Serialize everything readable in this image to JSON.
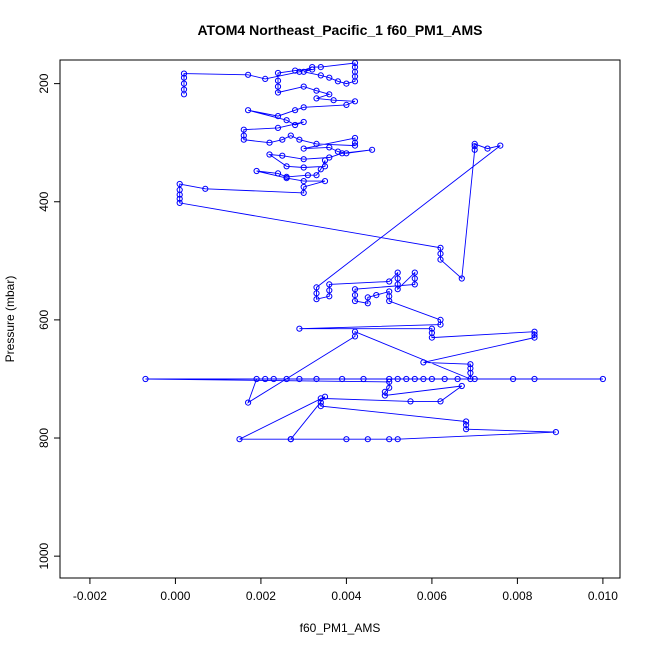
{
  "chart_data": {
    "type": "scatter",
    "title": "ATOM4 Northeast_Pacific_1 f60_PM1_AMS",
    "xlabel": "f60_PM1_AMS",
    "ylabel": "Pressure (mbar)",
    "xlim": [
      -0.0027,
      0.0104
    ],
    "ylim": [
      1037,
      160
    ],
    "y_inverted": true,
    "x_ticks": [
      -0.002,
      0.0,
      0.002,
      0.004,
      0.006,
      0.008,
      0.01
    ],
    "x_tick_labels": [
      "-0.002",
      "0.000",
      "0.002",
      "0.004",
      "0.006",
      "0.008",
      "0.010"
    ],
    "y_ticks": [
      200,
      400,
      600,
      800,
      1000
    ],
    "y_tick_labels": [
      "200",
      "400",
      "600",
      "800",
      "1000"
    ],
    "grid": false,
    "legend": "none",
    "series_color": "#0000ff",
    "marker": "open-circle",
    "connected": true,
    "series": [
      {
        "points": [
          [
            0.0002,
            218
          ],
          [
            0.0002,
            210
          ],
          [
            0.0002,
            200
          ],
          [
            0.0002,
            190
          ],
          [
            0.0002,
            183
          ],
          [
            0.0017,
            185
          ],
          [
            0.0021,
            192
          ],
          [
            0.0029,
            180
          ],
          [
            0.0032,
            172
          ],
          [
            0.0034,
            172
          ],
          [
            0.0042,
            165
          ],
          [
            0.0042,
            172
          ],
          [
            0.0042,
            180
          ],
          [
            0.0042,
            188
          ],
          [
            0.0042,
            196
          ],
          [
            0.004,
            200
          ],
          [
            0.0038,
            196
          ],
          [
            0.0036,
            190
          ],
          [
            0.0034,
            186
          ],
          [
            0.003,
            180
          ],
          [
            0.0032,
            176
          ],
          [
            0.0028,
            178
          ],
          [
            0.0024,
            182
          ],
          [
            0.0024,
            195
          ],
          [
            0.0024,
            205
          ],
          [
            0.0024,
            215
          ],
          [
            0.003,
            205
          ],
          [
            0.0033,
            212
          ],
          [
            0.0036,
            218
          ],
          [
            0.0033,
            225
          ],
          [
            0.0037,
            228
          ],
          [
            0.0042,
            230
          ],
          [
            0.004,
            236
          ],
          [
            0.003,
            240
          ],
          [
            0.0028,
            245
          ],
          [
            0.0024,
            255
          ],
          [
            0.0017,
            245
          ],
          [
            0.0026,
            262
          ],
          [
            0.0028,
            270
          ],
          [
            0.003,
            265
          ],
          [
            0.0024,
            275
          ],
          [
            0.0016,
            278
          ],
          [
            0.0016,
            288
          ],
          [
            0.0016,
            295
          ],
          [
            0.0022,
            300
          ],
          [
            0.0025,
            295
          ],
          [
            0.0027,
            288
          ],
          [
            0.0029,
            295
          ],
          [
            0.0033,
            302
          ],
          [
            0.0042,
            305
          ],
          [
            0.0042,
            300
          ],
          [
            0.0042,
            292
          ],
          [
            0.003,
            310
          ],
          [
            0.0036,
            308
          ],
          [
            0.0038,
            315
          ],
          [
            0.004,
            318
          ],
          [
            0.0046,
            312
          ],
          [
            0.0039,
            318
          ],
          [
            0.0036,
            325
          ],
          [
            0.003,
            328
          ],
          [
            0.0025,
            322
          ],
          [
            0.0022,
            320
          ],
          [
            0.0026,
            340
          ],
          [
            0.003,
            342
          ],
          [
            0.0035,
            340
          ],
          [
            0.0035,
            330
          ],
          [
            0.0034,
            345
          ],
          [
            0.0033,
            355
          ],
          [
            0.0031,
            355
          ],
          [
            0.0026,
            358
          ],
          [
            0.0024,
            352
          ],
          [
            0.0019,
            348
          ],
          [
            0.0026,
            360
          ],
          [
            0.003,
            365
          ],
          [
            0.0035,
            365
          ],
          [
            0.003,
            375
          ],
          [
            0.003,
            385
          ],
          [
            0.0007,
            378
          ],
          [
            0.0001,
            370
          ],
          [
            0.0001,
            380
          ],
          [
            0.0001,
            388
          ],
          [
            0.0001,
            395
          ],
          [
            0.0001,
            402
          ],
          [
            0.0062,
            478
          ],
          [
            0.0062,
            488
          ],
          [
            0.0062,
            498
          ],
          [
            0.0067,
            530
          ],
          [
            0.007,
            312
          ],
          [
            0.007,
            306
          ],
          [
            0.007,
            302
          ],
          [
            0.0073,
            310
          ],
          [
            0.0076,
            305
          ],
          [
            0.0033,
            545
          ],
          [
            0.0033,
            555
          ],
          [
            0.0033,
            565
          ],
          [
            0.0036,
            560
          ],
          [
            0.0036,
            550
          ],
          [
            0.0036,
            540
          ],
          [
            0.005,
            535
          ],
          [
            0.0052,
            520
          ],
          [
            0.0052,
            530
          ],
          [
            0.0052,
            540
          ],
          [
            0.0052,
            548
          ],
          [
            0.0056,
            520
          ],
          [
            0.0056,
            530
          ],
          [
            0.0056,
            540
          ],
          [
            0.0042,
            548
          ],
          [
            0.0042,
            558
          ],
          [
            0.0042,
            568
          ],
          [
            0.0045,
            572
          ],
          [
            0.0045,
            562
          ],
          [
            0.0047,
            558
          ],
          [
            0.005,
            552
          ],
          [
            0.005,
            560
          ],
          [
            0.005,
            568
          ],
          [
            0.0062,
            600
          ],
          [
            0.0062,
            608
          ],
          [
            0.0029,
            615
          ],
          [
            0.006,
            615
          ],
          [
            0.006,
            622
          ],
          [
            0.006,
            630
          ],
          [
            0.0084,
            620
          ],
          [
            0.0084,
            625
          ],
          [
            0.0084,
            630
          ],
          [
            0.0058,
            672
          ],
          [
            0.0069,
            675
          ],
          [
            0.0069,
            682
          ],
          [
            0.0069,
            690
          ],
          [
            0.0069,
            700
          ],
          [
            0.0042,
            620
          ],
          [
            0.0042,
            628
          ],
          [
            0.0017,
            740
          ],
          [
            0.0019,
            700
          ],
          [
            0.0021,
            700
          ],
          [
            0.0023,
            700
          ],
          [
            0.0026,
            700
          ],
          [
            0.0029,
            700
          ],
          [
            0.0033,
            700
          ],
          [
            0.0039,
            700
          ],
          [
            0.0044,
            700
          ],
          [
            0.005,
            700
          ],
          [
            0.0052,
            700
          ],
          [
            0.0054,
            700
          ],
          [
            0.0056,
            700
          ],
          [
            0.0058,
            700
          ],
          [
            0.006,
            700
          ],
          [
            0.0063,
            700
          ],
          [
            0.0066,
            700
          ],
          [
            0.007,
            700
          ],
          [
            0.0079,
            700
          ],
          [
            0.0084,
            700
          ],
          [
            0.01,
            700
          ],
          [
            -0.0007,
            700
          ],
          [
            0.005,
            705
          ],
          [
            0.005,
            715
          ],
          [
            0.0049,
            722
          ],
          [
            0.0049,
            728
          ],
          [
            0.0067,
            712
          ],
          [
            0.0062,
            738
          ],
          [
            0.0055,
            738
          ],
          [
            0.0034,
            733
          ],
          [
            0.0034,
            740
          ],
          [
            0.0034,
            746
          ],
          [
            0.0068,
            772
          ],
          [
            0.0068,
            778
          ],
          [
            0.0068,
            785
          ],
          [
            0.0089,
            790
          ],
          [
            0.0052,
            802
          ],
          [
            0.005,
            802
          ],
          [
            0.0045,
            802
          ],
          [
            0.004,
            802
          ],
          [
            0.0027,
            802
          ],
          [
            0.0015,
            802
          ],
          [
            0.0035,
            730
          ],
          [
            0.0027,
            802
          ]
        ]
      }
    ]
  }
}
